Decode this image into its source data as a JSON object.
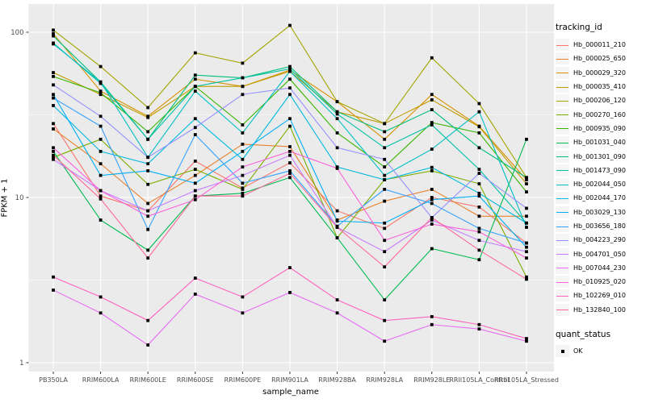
{
  "figure": {
    "panel_bg": "#EBEBEB",
    "grid_color": "#FFFFFF",
    "axis_text_color": "#4D4D4D",
    "tick_color": "#333333",
    "marker_color": "#000000",
    "legend_key_bg": "#F5F5F5"
  },
  "chart_data": {
    "type": "line",
    "title": "",
    "xlabel": "sample_name",
    "ylabel": "FPKM + 1",
    "y_scale": "log10",
    "ylim": [
      1,
      150
    ],
    "y_ticks": [
      1,
      10,
      100
    ],
    "y_minor_ticks": [
      3.1623,
      31.623
    ],
    "grid": true,
    "legend_position": "right",
    "legend_title": "tracking_id",
    "legend2_title": "quant_status",
    "legend2_items": [
      "OK"
    ],
    "x_categories": [
      "PB350LA",
      "RRIM600LA",
      "RRIM600LE",
      "RRIM600SE",
      "RRIM600PE",
      "RRIM901LA",
      "RRIM928BA",
      "RRIM928LA",
      "RRIM928LE",
      "RRII105LA_Control",
      "RRII105LA_Stressed"
    ],
    "series": [
      {
        "name": "Hb_000011_210",
        "color": "#F8766D",
        "values": [
          28,
          10.2,
          8.3,
          16.6,
          11.4,
          16.2,
          8.3,
          6.5,
          10,
          8.75,
          5.3
        ]
      },
      {
        "name": "Hb_000025_650",
        "color": "#EA8331",
        "values": [
          26,
          16,
          9.2,
          13.6,
          21,
          20.3,
          7.3,
          9.5,
          11.2,
          7.7,
          7.7
        ]
      },
      {
        "name": "Hb_000029_320",
        "color": "#D89000",
        "values": [
          98,
          44,
          31,
          52,
          47,
          59,
          38,
          22.5,
          42,
          27,
          12.8
        ]
      },
      {
        "name": "Hb_000035_410",
        "color": "#C09B00",
        "values": [
          57,
          42,
          30.5,
          47,
          47,
          58,
          33,
          28,
          39,
          26.8,
          12.1
        ]
      },
      {
        "name": "Hb_000206_120",
        "color": "#A3A500",
        "values": [
          103,
          62,
          35,
          75,
          65,
          110,
          38,
          28,
          70,
          37,
          13.2
        ]
      },
      {
        "name": "Hb_000270_160",
        "color": "#7CAE00",
        "values": [
          17.5,
          22.5,
          12,
          14.8,
          11.2,
          27,
          5.7,
          12.8,
          14.5,
          12.1,
          3.3
        ]
      },
      {
        "name": "Hb_000935_090",
        "color": "#39B600",
        "values": [
          54,
          43,
          25,
          47,
          27.5,
          52,
          24.6,
          15.3,
          28.4,
          24.6,
          10.8
        ]
      },
      {
        "name": "Hb_001031_040",
        "color": "#00BB4E",
        "values": [
          19,
          7.3,
          4.8,
          10.2,
          10.6,
          13.2,
          5.7,
          2.4,
          4.9,
          4.2,
          22.5
        ]
      },
      {
        "name": "Hb_001301_090",
        "color": "#00BF7D",
        "values": [
          95,
          50,
          22.5,
          55,
          53,
          62,
          33,
          25,
          34,
          20,
          13.2
        ]
      },
      {
        "name": "Hb_001473_090",
        "color": "#00C1A3",
        "values": [
          86,
          49,
          22.5,
          47,
          53,
          60,
          32,
          20,
          27.5,
          14.8,
          7.0
        ]
      },
      {
        "name": "Hb_002044_050",
        "color": "#00BFC4",
        "values": [
          85,
          50,
          17.5,
          44,
          24.6,
          58,
          30,
          13.6,
          19.6,
          33,
          6.6
        ]
      },
      {
        "name": "Hb_002044_170",
        "color": "#00BAE0",
        "values": [
          36,
          19,
          16,
          30,
          17,
          42,
          15.3,
          12.8,
          15.2,
          10.6,
          7.0
        ]
      },
      {
        "name": "Hb_003029_130",
        "color": "#00B0F6",
        "values": [
          42,
          13.6,
          14.5,
          12.2,
          19,
          30,
          7.2,
          7.0,
          9.7,
          10.2,
          5.0
        ]
      },
      {
        "name": "Hb_003656_180",
        "color": "#35A2FF",
        "values": [
          40,
          27,
          6.4,
          24,
          12.2,
          14.5,
          6.7,
          11.2,
          9.2,
          6.5,
          5.3
        ]
      },
      {
        "name": "Hb_004223_290",
        "color": "#9590FF",
        "values": [
          48,
          31,
          17.5,
          26.5,
          42,
          46,
          20,
          17,
          7.55,
          14,
          8.6
        ]
      },
      {
        "name": "Hb_004701_050",
        "color": "#C77CFF",
        "values": [
          17,
          11,
          8.3,
          11,
          13.6,
          18,
          6.6,
          4.7,
          7.3,
          5.5,
          4.7
        ]
      },
      {
        "name": "Hb_007044_230",
        "color": "#E76BF3",
        "values": [
          2.75,
          2.0,
          1.28,
          2.6,
          2.0,
          2.66,
          2.0,
          1.35,
          1.7,
          1.6,
          1.35
        ]
      },
      {
        "name": "Hb_010925_020",
        "color": "#FA62DB",
        "values": [
          20,
          11,
          7.7,
          9.7,
          15.3,
          19,
          15,
          5.5,
          6.9,
          6.2,
          4.3
        ]
      },
      {
        "name": "Hb_102269_010",
        "color": "#FF62BC",
        "values": [
          3.3,
          2.5,
          1.8,
          3.25,
          2.5,
          3.76,
          2.4,
          1.8,
          1.9,
          1.7,
          1.4
        ]
      },
      {
        "name": "Hb_132840_100",
        "color": "#FF6A98",
        "values": [
          18,
          9.8,
          4.3,
          10.2,
          10.2,
          14,
          6.6,
          3.8,
          7.55,
          4.8,
          3.2
        ]
      }
    ]
  }
}
